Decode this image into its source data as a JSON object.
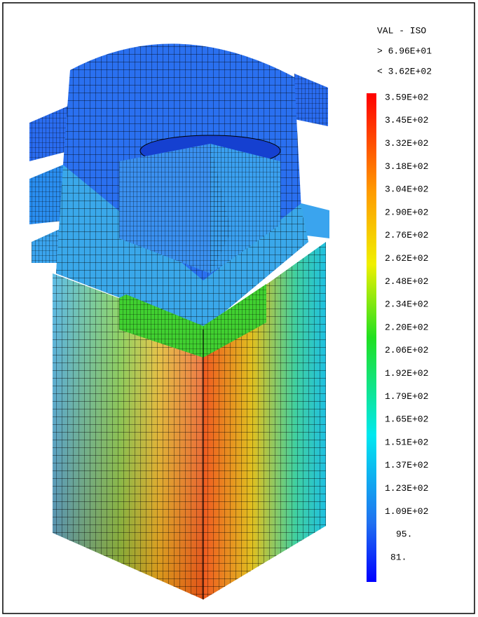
{
  "legend": {
    "title": "VAL - ISO",
    "min_label": "> 6.96E+01",
    "max_label": "< 3.62E+02",
    "labels": [
      "3.59E+02",
      "3.45E+02",
      "3.32E+02",
      "3.18E+02",
      "3.04E+02",
      "2.90E+02",
      "2.76E+02",
      "2.62E+02",
      "2.48E+02",
      "2.34E+02",
      "2.20E+02",
      "2.06E+02",
      "1.92E+02",
      "1.79E+02",
      "1.65E+02",
      "1.51E+02",
      "1.37E+02",
      "1.23E+02",
      "1.09E+02",
      "95.",
      "81."
    ]
  }
}
